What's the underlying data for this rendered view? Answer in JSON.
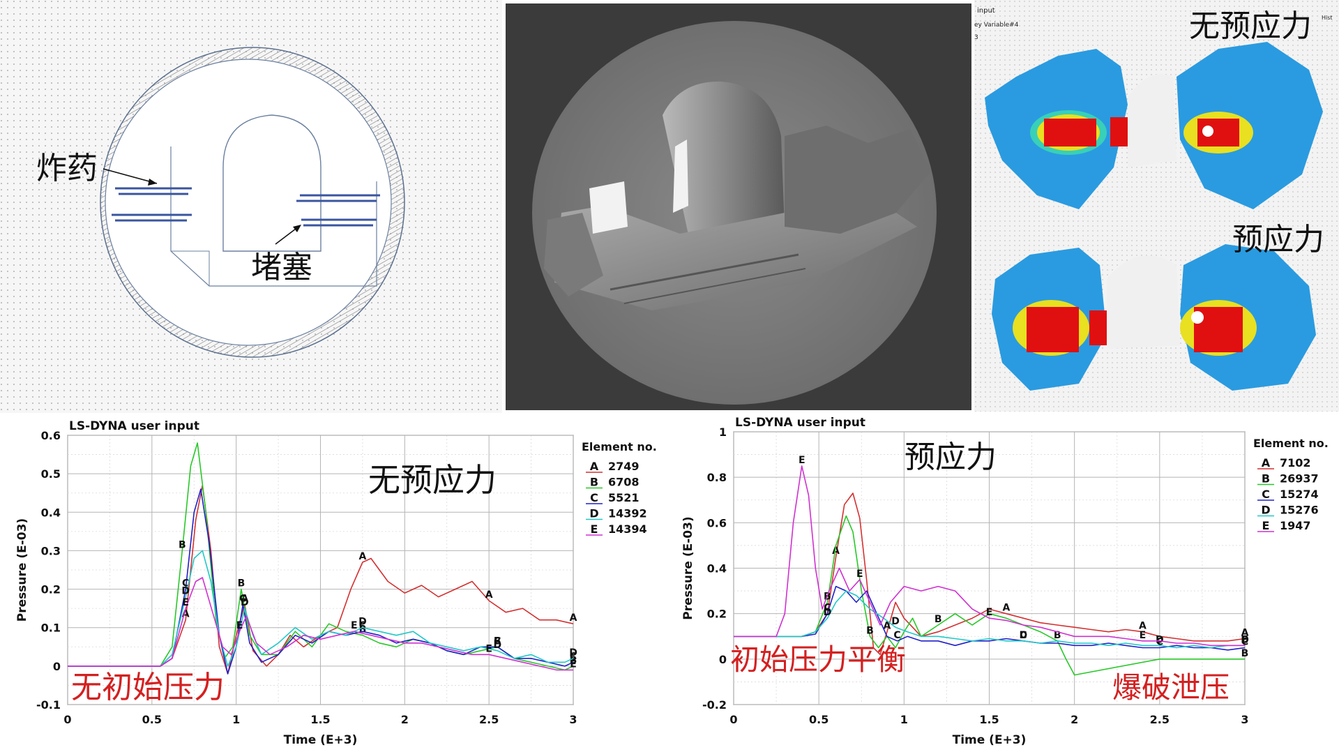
{
  "model_panel": {
    "label_explosive": "炸药",
    "label_stemming": "堵塞"
  },
  "contour_panel": {
    "header_lines": [
      "input",
      "ey Variable#4",
      "3"
    ],
    "corner_text": "Hist",
    "label_top": "无预应力",
    "label_bottom": "预应力"
  },
  "chart_data": [
    {
      "type": "line",
      "title": "LS-DYNA user input",
      "xlabel": "Time (E+3)",
      "ylabel": "Pressure (E-03)",
      "xlim": [
        0,
        3
      ],
      "ylim": [
        -0.1,
        0.6
      ],
      "xticks": [
        "0",
        "0.5",
        "1",
        "1.5",
        "2",
        "2.5",
        "3"
      ],
      "yticks": [
        "-0.1",
        "0",
        "0.1",
        "0.2",
        "0.3",
        "0.4",
        "0.5",
        "0.6"
      ],
      "grid": true,
      "legend_title": "Element no.",
      "legend_position": "right",
      "annotations": [
        "无预应力",
        "无初始压力"
      ],
      "annotation_colors": [
        "#111111",
        "#d42020"
      ],
      "series": [
        {
          "letter": "A",
          "name": "2749",
          "color": "#d43030",
          "x": [
            0,
            0.55,
            0.62,
            0.7,
            0.76,
            0.8,
            0.85,
            0.9,
            0.95,
            1.0,
            1.05,
            1.1,
            1.18,
            1.25,
            1.32,
            1.4,
            1.5,
            1.6,
            1.68,
            1.75,
            1.8,
            1.9,
            2.0,
            2.1,
            2.2,
            2.3,
            2.4,
            2.5,
            2.6,
            2.7,
            2.8,
            2.9,
            3.0
          ],
          "y": [
            0,
            0,
            0.02,
            0.12,
            0.38,
            0.47,
            0.3,
            0.05,
            -0.02,
            0.08,
            0.16,
            0.04,
            0,
            0.03,
            0.08,
            0.05,
            0.08,
            0.1,
            0.2,
            0.27,
            0.28,
            0.22,
            0.19,
            0.21,
            0.18,
            0.2,
            0.22,
            0.17,
            0.14,
            0.15,
            0.12,
            0.12,
            0.11
          ]
        },
        {
          "letter": "B",
          "name": "6708",
          "color": "#28c828",
          "x": [
            0,
            0.55,
            0.62,
            0.68,
            0.73,
            0.77,
            0.82,
            0.88,
            0.93,
            0.98,
            1.03,
            1.08,
            1.15,
            1.25,
            1.35,
            1.45,
            1.55,
            1.65,
            1.75,
            1.85,
            1.95,
            2.05,
            2.15,
            2.25,
            2.35,
            2.45,
            2.55,
            2.65,
            2.75,
            2.85,
            2.95,
            3.0
          ],
          "y": [
            0,
            0,
            0.05,
            0.3,
            0.52,
            0.58,
            0.4,
            0.12,
            0.02,
            0.05,
            0.2,
            0.08,
            0.03,
            0.03,
            0.09,
            0.05,
            0.11,
            0.09,
            0.08,
            0.06,
            0.05,
            0.07,
            0.06,
            0.04,
            0.03,
            0.04,
            0.05,
            0.02,
            0.01,
            0.0,
            -0.01,
            0.0
          ]
        },
        {
          "letter": "C",
          "name": "5521",
          "color": "#2020c8",
          "x": [
            0,
            0.55,
            0.62,
            0.7,
            0.75,
            0.79,
            0.84,
            0.9,
            0.95,
            1.0,
            1.04,
            1.08,
            1.15,
            1.25,
            1.35,
            1.45,
            1.55,
            1.65,
            1.75,
            1.85,
            1.95,
            2.05,
            2.15,
            2.25,
            2.35,
            2.45,
            2.55,
            2.65,
            2.75,
            2.85,
            2.95,
            3.0
          ],
          "y": [
            0,
            0,
            0.02,
            0.2,
            0.4,
            0.46,
            0.32,
            0.08,
            -0.02,
            0.05,
            0.16,
            0.06,
            0.01,
            0.03,
            0.08,
            0.06,
            0.09,
            0.08,
            0.09,
            0.08,
            0.06,
            0.07,
            0.06,
            0.04,
            0.03,
            0.05,
            0.05,
            0.02,
            0.02,
            0.01,
            0.0,
            0.01
          ]
        },
        {
          "letter": "D",
          "name": "14392",
          "color": "#20c8c8",
          "x": [
            0,
            0.55,
            0.62,
            0.7,
            0.75,
            0.8,
            0.85,
            0.9,
            0.95,
            1.0,
            1.05,
            1.1,
            1.15,
            1.25,
            1.35,
            1.45,
            1.55,
            1.65,
            1.75,
            1.85,
            1.95,
            2.05,
            2.15,
            2.25,
            2.35,
            2.45,
            2.55,
            2.65,
            2.75,
            2.85,
            2.95,
            3.0
          ],
          "y": [
            0,
            0,
            0.03,
            0.18,
            0.28,
            0.3,
            0.22,
            0.08,
            0.0,
            0.05,
            0.15,
            0.08,
            0.03,
            0.06,
            0.1,
            0.07,
            0.09,
            0.08,
            0.1,
            0.09,
            0.08,
            0.09,
            0.06,
            0.05,
            0.04,
            0.05,
            0.04,
            0.02,
            0.03,
            0.01,
            0.01,
            0.02
          ]
        },
        {
          "letter": "E",
          "name": "14394",
          "color": "#d030d0",
          "x": [
            0,
            0.55,
            0.62,
            0.7,
            0.76,
            0.8,
            0.86,
            0.92,
            0.97,
            1.02,
            1.06,
            1.12,
            1.2,
            1.3,
            1.4,
            1.5,
            1.6,
            1.7,
            1.8,
            1.9,
            2.0,
            2.1,
            2.2,
            2.3,
            2.4,
            2.5,
            2.6,
            2.7,
            2.8,
            2.9,
            3.0
          ],
          "y": [
            0,
            0,
            0.02,
            0.15,
            0.22,
            0.23,
            0.14,
            0.05,
            0.03,
            0.09,
            0.13,
            0.06,
            0.03,
            0.05,
            0.08,
            0.07,
            0.08,
            0.09,
            0.08,
            0.07,
            0.06,
            0.06,
            0.05,
            0.04,
            0.03,
            0.03,
            0.02,
            0.01,
            0.0,
            -0.01,
            -0.01
          ]
        }
      ]
    },
    {
      "type": "line",
      "title": "LS-DYNA user input",
      "xlabel": "Time (E+3)",
      "ylabel": "Pressure (E-03)",
      "xlim": [
        0,
        3
      ],
      "ylim": [
        -0.2,
        1.0
      ],
      "xticks": [
        "0",
        "0.5",
        "1",
        "1.5",
        "2",
        "2.5",
        "3"
      ],
      "yticks": [
        "-0.2",
        "0",
        "0.2",
        "0.4",
        "0.6",
        "0.8",
        "1"
      ],
      "grid": true,
      "legend_title": "Element no.",
      "legend_position": "right",
      "annotations": [
        "预应力",
        "初始压力平衡",
        "爆破泄压"
      ],
      "annotation_colors": [
        "#111111",
        "#d42020",
        "#d42020"
      ],
      "series": [
        {
          "letter": "A",
          "name": "7102",
          "color": "#d43030",
          "x": [
            0,
            0.4,
            0.48,
            0.55,
            0.6,
            0.65,
            0.7,
            0.74,
            0.78,
            0.82,
            0.86,
            0.9,
            0.95,
            1.0,
            1.05,
            1.1,
            1.2,
            1.3,
            1.4,
            1.5,
            1.6,
            1.7,
            1.8,
            1.9,
            2.0,
            2.1,
            2.2,
            2.3,
            2.4,
            2.5,
            2.6,
            2.7,
            2.8,
            2.9,
            3.0
          ],
          "y": [
            0.1,
            0.1,
            0.12,
            0.2,
            0.45,
            0.68,
            0.73,
            0.62,
            0.35,
            0.05,
            0.02,
            0.12,
            0.25,
            0.18,
            0.14,
            0.1,
            0.12,
            0.15,
            0.18,
            0.22,
            0.2,
            0.18,
            0.16,
            0.15,
            0.14,
            0.13,
            0.12,
            0.13,
            0.12,
            0.1,
            0.09,
            0.08,
            0.08,
            0.08,
            0.09
          ]
        },
        {
          "letter": "B",
          "name": "26937",
          "color": "#28c828",
          "x": [
            0,
            0.4,
            0.48,
            0.55,
            0.6,
            0.66,
            0.7,
            0.75,
            0.8,
            0.85,
            0.9,
            0.95,
            1.0,
            1.05,
            1.1,
            1.2,
            1.3,
            1.4,
            1.5,
            1.6,
            1.7,
            1.8,
            1.9,
            1.95,
            2.0,
            2.5,
            3.0
          ],
          "y": [
            0.1,
            0.1,
            0.12,
            0.25,
            0.5,
            0.63,
            0.56,
            0.3,
            0.1,
            0.05,
            0.1,
            0.05,
            0.12,
            0.18,
            0.1,
            0.15,
            0.2,
            0.15,
            0.2,
            0.18,
            0.15,
            0.12,
            0.08,
            0.0,
            -0.07,
            0.0,
            0.0
          ]
        },
        {
          "letter": "C",
          "name": "15274",
          "color": "#2020c8",
          "x": [
            0,
            0.4,
            0.48,
            0.55,
            0.6,
            0.66,
            0.72,
            0.78,
            0.84,
            0.9,
            0.96,
            1.02,
            1.1,
            1.2,
            1.3,
            1.4,
            1.5,
            1.6,
            1.7,
            1.8,
            1.9,
            2.0,
            2.1,
            2.2,
            2.3,
            2.4,
            2.5,
            2.6,
            2.7,
            2.8,
            2.9,
            3.0
          ],
          "y": [
            0.1,
            0.1,
            0.11,
            0.2,
            0.32,
            0.3,
            0.25,
            0.3,
            0.2,
            0.1,
            0.08,
            0.1,
            0.08,
            0.08,
            0.06,
            0.08,
            0.08,
            0.09,
            0.08,
            0.07,
            0.07,
            0.06,
            0.06,
            0.07,
            0.06,
            0.05,
            0.05,
            0.06,
            0.05,
            0.05,
            0.04,
            0.05
          ]
        },
        {
          "letter": "D",
          "name": "15276",
          "color": "#20c8c8",
          "x": [
            0,
            0.4,
            0.48,
            0.55,
            0.6,
            0.66,
            0.72,
            0.8,
            0.88,
            0.95,
            1.02,
            1.1,
            1.2,
            1.3,
            1.4,
            1.5,
            1.6,
            1.7,
            1.8,
            1.9,
            2.0,
            2.1,
            2.2,
            2.3,
            2.4,
            2.5,
            2.6,
            2.7,
            2.8,
            2.9,
            3.0
          ],
          "y": [
            0.1,
            0.1,
            0.12,
            0.18,
            0.25,
            0.3,
            0.28,
            0.22,
            0.18,
            0.14,
            0.12,
            0.1,
            0.1,
            0.09,
            0.08,
            0.09,
            0.08,
            0.08,
            0.07,
            0.08,
            0.07,
            0.07,
            0.06,
            0.07,
            0.06,
            0.06,
            0.05,
            0.06,
            0.05,
            0.06,
            0.06
          ]
        },
        {
          "letter": "E",
          "name": "1947",
          "color": "#d030d0",
          "x": [
            0,
            0.25,
            0.3,
            0.35,
            0.4,
            0.44,
            0.48,
            0.52,
            0.56,
            0.62,
            0.68,
            0.74,
            0.8,
            0.86,
            0.92,
            1.0,
            1.1,
            1.2,
            1.3,
            1.4,
            1.5,
            1.6,
            1.7,
            1.8,
            1.9,
            2.0,
            2.1,
            2.2,
            2.3,
            2.4,
            2.5,
            2.6,
            2.7,
            2.8,
            2.9,
            3.0
          ],
          "y": [
            0.1,
            0.1,
            0.2,
            0.6,
            0.85,
            0.72,
            0.4,
            0.22,
            0.3,
            0.4,
            0.3,
            0.35,
            0.25,
            0.15,
            0.25,
            0.32,
            0.3,
            0.32,
            0.3,
            0.22,
            0.18,
            0.17,
            0.15,
            0.14,
            0.12,
            0.1,
            0.1,
            0.1,
            0.09,
            0.08,
            0.08,
            0.07,
            0.07,
            0.06,
            0.06,
            0.06
          ]
        }
      ]
    }
  ]
}
